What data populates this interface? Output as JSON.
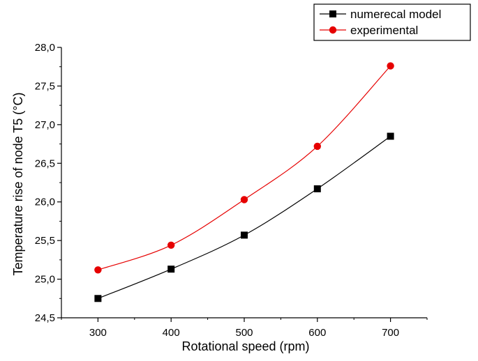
{
  "chart_data": {
    "type": "line",
    "xlabel": "Rotational speed (rpm)",
    "ylabel": "Temperature rise of node T5 (°C)",
    "x": [
      300,
      400,
      500,
      600,
      700
    ],
    "xlim": [
      250,
      750
    ],
    "ylim": [
      24.5,
      28.0
    ],
    "x_ticks": [
      300,
      400,
      500,
      600,
      700
    ],
    "x_tick_labels": [
      "300",
      "400",
      "500",
      "600",
      "700"
    ],
    "y_ticks": [
      24.5,
      25.0,
      25.5,
      26.0,
      26.5,
      27.0,
      27.5,
      28.0
    ],
    "y_tick_labels": [
      "24,5",
      "25,0",
      "25,5",
      "26,0",
      "26,5",
      "27,0",
      "27,5",
      "28,0"
    ],
    "grid": false,
    "legend_position": "top-right",
    "series": [
      {
        "name": "numerecal model",
        "marker": "square",
        "color": "#000000",
        "values": [
          24.75,
          25.13,
          25.57,
          26.17,
          26.85
        ]
      },
      {
        "name": "experimental",
        "marker": "circle",
        "color": "#e60000",
        "values": [
          25.12,
          25.44,
          26.03,
          26.72,
          27.76
        ]
      }
    ]
  }
}
